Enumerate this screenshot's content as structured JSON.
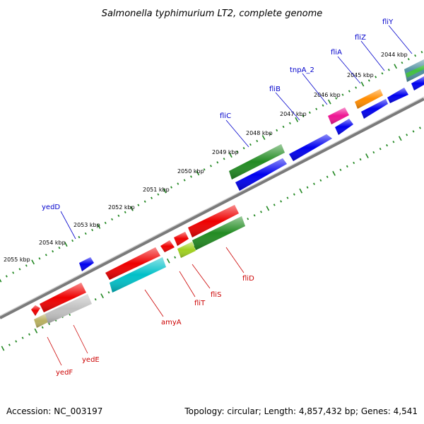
{
  "title": "Salmonella typhimurium LT2, complete genome",
  "footer": {
    "accession": "Accession: NC_003197",
    "summary": "Topology: circular; Length: 4,857,432 bp; Genes: 4,541"
  },
  "colors": {
    "forward_label": "#0000cc",
    "reverse_label": "#cc0000",
    "backbone": "#888888",
    "tick": "#228822"
  },
  "ticks": [
    "2044 kbp",
    "2045 kbp",
    "2046 kbp",
    "2047 kbp",
    "2048 kbp",
    "2049 kbp",
    "2050 kbp",
    "2051 kbp",
    "2052 kbp",
    "2053 kbp",
    "2054 kbp",
    "2055 kbp"
  ],
  "forward_genes": [
    {
      "name": "yedD",
      "color": "#0000ee"
    },
    {
      "name": "fliC",
      "color": "#0000ee"
    },
    {
      "name": "fliB",
      "color": "#0000ee"
    },
    {
      "name": "tnpA_2",
      "color": "#0000ee"
    },
    {
      "name": "fliA",
      "color": "#0000ee"
    },
    {
      "name": "fliZ",
      "color": "#0000ee"
    },
    {
      "name": "fliY",
      "color": "#0000ee"
    }
  ],
  "reverse_genes": [
    {
      "name": "yedF",
      "color": "#ee0000"
    },
    {
      "name": "yedE",
      "color": "#ee0000"
    },
    {
      "name": "amyA",
      "color": "#ee0000"
    },
    {
      "name": "fliT",
      "color": "#ee0000"
    },
    {
      "name": "fliS",
      "color": "#ee0000"
    },
    {
      "name": "fliD",
      "color": "#ee0000"
    }
  ],
  "cog_colors": {
    "green": "#228b22",
    "pink": "#ee1493",
    "orange": "#ff8c00",
    "cyan": "#00c0c8",
    "gray": "#c0c0c0",
    "olive": "#b8b060",
    "lightgreen": "#a0d020",
    "teal": "#5090a0"
  }
}
